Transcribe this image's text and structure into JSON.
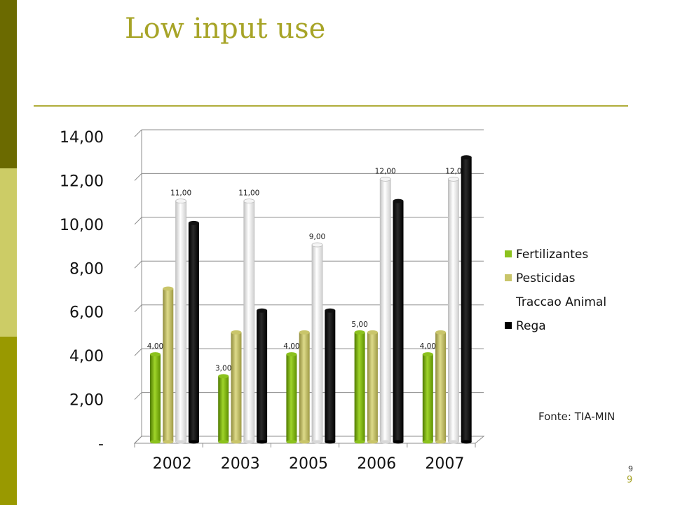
{
  "slide": {
    "title": "Low input use",
    "source": "Fonte: TIA-MIN",
    "page_number_small": "9",
    "page_number": "9",
    "colors": {
      "accent": "#a7a427",
      "band_dark": "#6b6a00",
      "band_light": "#cccc66",
      "band_mid": "#999900"
    }
  },
  "chart_data": {
    "type": "bar",
    "categories": [
      "2002",
      "2003",
      "2005",
      "2006",
      "2007"
    ],
    "series": [
      {
        "name": "Fertilizantes",
        "color": "#8cc21e",
        "values": [
          4,
          3,
          4,
          5,
          4
        ],
        "data_labels": [
          "4,00",
          "3,00",
          "4,00",
          "5,00",
          "4,00"
        ]
      },
      {
        "name": "Pesticidas",
        "color": "#c9c56a",
        "values": [
          7,
          5,
          5,
          5,
          5
        ],
        "data_labels": [
          "",
          "",
          "",
          "",
          ""
        ]
      },
      {
        "name": "Traccao Animal",
        "color": "#ffffff",
        "values": [
          11,
          11,
          9,
          12,
          12
        ],
        "data_labels": [
          "11,00",
          "11,00",
          "9,00",
          "12,00",
          "12,0"
        ]
      },
      {
        "name": "Rega",
        "color": "#000000",
        "values": [
          10,
          6,
          6,
          11,
          13
        ],
        "data_labels": [
          "",
          "",
          "",
          "",
          ""
        ]
      }
    ],
    "y_ticks": [
      "-",
      "2,00",
      "4,00",
      "6,00",
      "8,00",
      "10,00",
      "12,00",
      "14,00"
    ],
    "ylim": [
      0,
      14
    ],
    "grid": true,
    "legend_position": "right"
  }
}
